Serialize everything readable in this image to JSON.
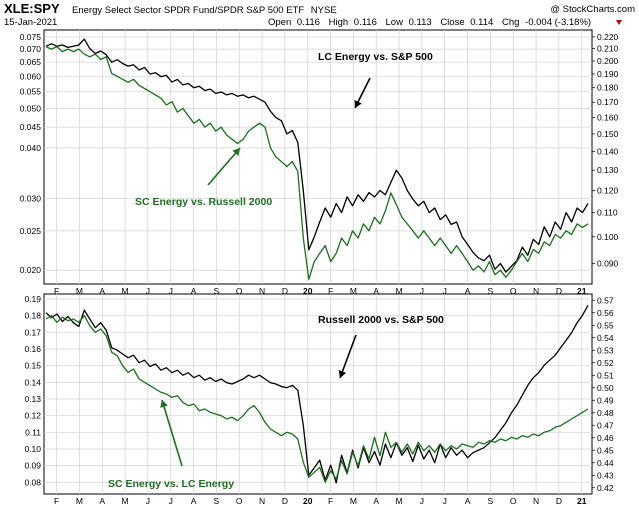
{
  "header": {
    "ticker": "XLE:SPY",
    "description": "Energy Select Sector SPDR Fund/SPDR S&P 500 ETF",
    "exchange": "NYSE",
    "date": "15-Jan-2021",
    "credit": "@ StockCharts.com",
    "open_label": "Open",
    "open_value": "0.116",
    "high_label": "High",
    "high_value": "0.116",
    "low_label": "Low",
    "low_value": "0.113",
    "close_label": "Close",
    "close_value": "0.114",
    "chg_label": "Chg",
    "chg_value": "-0.004 (-3.18%)",
    "chg_color": "#cc0000"
  },
  "colors": {
    "black_series": "#000000",
    "green_series": "#1f6e1f",
    "grid": "#d0d0d0"
  },
  "chart_data": [
    {
      "type": "line",
      "y_scale": "log",
      "x_ticks": [
        "F",
        "M",
        "A",
        "M",
        "J",
        "J",
        "A",
        "S",
        "O",
        "N",
        "D",
        "20",
        "F",
        "M",
        "A",
        "M",
        "J",
        "J",
        "A",
        "S",
        "O",
        "N",
        "D",
        "21"
      ],
      "left_axis": {
        "ticks": [
          0.075,
          0.07,
          0.065,
          0.06,
          0.055,
          0.05,
          0.045,
          0.04,
          0.03,
          0.025,
          0.02
        ],
        "range": [
          0.0185,
          0.078
        ]
      },
      "right_axis": {
        "ticks": [
          0.22,
          0.21,
          0.2,
          0.19,
          0.18,
          0.17,
          0.16,
          0.15,
          0.14,
          0.13,
          0.12,
          0.11,
          0.1,
          0.09
        ],
        "range": [
          0.083,
          0.226
        ]
      },
      "annotations": [
        {
          "text": "LC Energy vs. S&P 500"
        },
        {
          "text": "SC Energy vs. Russell 2000"
        }
      ],
      "series": [
        {
          "axis": "right",
          "color": "#000000",
          "values": [
            0.212,
            0.214,
            0.212,
            0.213,
            0.211,
            0.212,
            0.213,
            0.218,
            0.21,
            0.206,
            0.208,
            0.205,
            0.199,
            0.201,
            0.198,
            0.196,
            0.197,
            0.193,
            0.195,
            0.19,
            0.191,
            0.188,
            0.189,
            0.184,
            0.186,
            0.182,
            0.183,
            0.18,
            0.181,
            0.178,
            0.179,
            0.176,
            0.177,
            0.175,
            0.176,
            0.174,
            0.175,
            0.173,
            0.174,
            0.172,
            0.17,
            0.164,
            0.16,
            0.158,
            0.15,
            0.152,
            0.145,
            0.12,
            0.095,
            0.1,
            0.106,
            0.112,
            0.108,
            0.114,
            0.11,
            0.117,
            0.113,
            0.118,
            0.115,
            0.119,
            0.117,
            0.12,
            0.118,
            0.124,
            0.13,
            0.126,
            0.12,
            0.116,
            0.113,
            0.115,
            0.11,
            0.112,
            0.107,
            0.109,
            0.105,
            0.106,
            0.1,
            0.097,
            0.094,
            0.092,
            0.091,
            0.093,
            0.088,
            0.09,
            0.087,
            0.089,
            0.091,
            0.096,
            0.093,
            0.099,
            0.097,
            0.104,
            0.1,
            0.106,
            0.103,
            0.11,
            0.106,
            0.112,
            0.11,
            0.114
          ]
        },
        {
          "axis": "left",
          "color": "#1f6e1f",
          "values": [
            0.071,
            0.07,
            0.071,
            0.069,
            0.07,
            0.069,
            0.07,
            0.068,
            0.067,
            0.068,
            0.066,
            0.067,
            0.061,
            0.06,
            0.059,
            0.058,
            0.059,
            0.057,
            0.056,
            0.055,
            0.054,
            0.053,
            0.051,
            0.052,
            0.049,
            0.05,
            0.048,
            0.046,
            0.047,
            0.045,
            0.046,
            0.044,
            0.045,
            0.043,
            0.042,
            0.041,
            0.042,
            0.044,
            0.045,
            0.046,
            0.045,
            0.04,
            0.038,
            0.037,
            0.036,
            0.037,
            0.035,
            0.024,
            0.019,
            0.021,
            0.022,
            0.023,
            0.021,
            0.022,
            0.024,
            0.023,
            0.025,
            0.024,
            0.026,
            0.025,
            0.027,
            0.026,
            0.028,
            0.031,
            0.029,
            0.027,
            0.026,
            0.025,
            0.024,
            0.025,
            0.024,
            0.023,
            0.024,
            0.023,
            0.022,
            0.023,
            0.022,
            0.021,
            0.02,
            0.0205,
            0.0198,
            0.021,
            0.0195,
            0.02,
            0.0192,
            0.02,
            0.021,
            0.022,
            0.021,
            0.0225,
            0.022,
            0.0235,
            0.023,
            0.0245,
            0.024,
            0.025,
            0.0245,
            0.026,
            0.0255,
            0.026
          ]
        }
      ]
    },
    {
      "type": "line",
      "y_scale": "linear",
      "x_ticks": [
        "F",
        "M",
        "A",
        "M",
        "J",
        "J",
        "A",
        "S",
        "O",
        "N",
        "D",
        "20",
        "F",
        "M",
        "A",
        "M",
        "J",
        "J",
        "A",
        "S",
        "O",
        "N",
        "D",
        "21"
      ],
      "left_axis": {
        "ticks": [
          0.19,
          0.18,
          0.17,
          0.16,
          0.15,
          0.14,
          0.13,
          0.12,
          0.11,
          0.1,
          0.09,
          0.08
        ],
        "range": [
          0.073,
          0.193
        ]
      },
      "right_axis": {
        "ticks": [
          0.57,
          0.56,
          0.55,
          0.54,
          0.53,
          0.52,
          0.51,
          0.5,
          0.49,
          0.48,
          0.47,
          0.46,
          0.45,
          0.44,
          0.43,
          0.42
        ],
        "range": [
          0.415,
          0.575
        ]
      },
      "annotations": [
        {
          "text": "Russell 2000 vs. S&P 500"
        },
        {
          "text": "SC Energy vs. LC Energy"
        }
      ],
      "series": [
        {
          "axis": "right",
          "color": "#000000",
          "values": [
            0.56,
            0.556,
            0.559,
            0.553,
            0.557,
            0.552,
            0.549,
            0.562,
            0.555,
            0.548,
            0.552,
            0.546,
            0.532,
            0.53,
            0.527,
            0.524,
            0.526,
            0.52,
            0.522,
            0.517,
            0.519,
            0.514,
            0.516,
            0.512,
            0.514,
            0.51,
            0.512,
            0.508,
            0.51,
            0.506,
            0.508,
            0.505,
            0.507,
            0.504,
            0.503,
            0.505,
            0.507,
            0.51,
            0.508,
            0.51,
            0.507,
            0.504,
            0.503,
            0.501,
            0.5,
            0.502,
            0.498,
            0.47,
            0.43,
            0.436,
            0.442,
            0.426,
            0.438,
            0.424,
            0.446,
            0.432,
            0.45,
            0.436,
            0.452,
            0.44,
            0.449,
            0.438,
            0.455,
            0.444,
            0.456,
            0.446,
            0.452,
            0.441,
            0.454,
            0.443,
            0.45,
            0.44,
            0.455,
            0.444,
            0.452,
            0.446,
            0.45,
            0.444,
            0.448,
            0.45,
            0.452,
            0.456,
            0.46,
            0.466,
            0.472,
            0.48,
            0.486,
            0.494,
            0.502,
            0.508,
            0.512,
            0.518,
            0.522,
            0.526,
            0.532,
            0.538,
            0.544,
            0.552,
            0.558,
            0.566
          ]
        },
        {
          "axis": "left",
          "color": "#1f6e1f",
          "values": [
            0.178,
            0.18,
            0.176,
            0.179,
            0.177,
            0.178,
            0.176,
            0.18,
            0.174,
            0.17,
            0.172,
            0.168,
            0.158,
            0.156,
            0.15,
            0.146,
            0.148,
            0.142,
            0.14,
            0.138,
            0.136,
            0.134,
            0.133,
            0.131,
            0.132,
            0.128,
            0.126,
            0.127,
            0.123,
            0.124,
            0.122,
            0.121,
            0.12,
            0.118,
            0.119,
            0.117,
            0.12,
            0.124,
            0.126,
            0.122,
            0.116,
            0.112,
            0.11,
            0.108,
            0.11,
            0.109,
            0.106,
            0.092,
            0.083,
            0.086,
            0.089,
            0.08,
            0.087,
            0.082,
            0.093,
            0.085,
            0.098,
            0.09,
            0.102,
            0.094,
            0.107,
            0.096,
            0.11,
            0.101,
            0.104,
            0.098,
            0.103,
            0.097,
            0.104,
            0.099,
            0.102,
            0.098,
            0.103,
            0.099,
            0.102,
            0.1,
            0.103,
            0.102,
            0.101,
            0.104,
            0.103,
            0.105,
            0.104,
            0.106,
            0.105,
            0.107,
            0.106,
            0.108,
            0.107,
            0.109,
            0.108,
            0.11,
            0.111,
            0.113,
            0.114,
            0.116,
            0.118,
            0.12,
            0.122,
            0.124
          ]
        }
      ]
    }
  ]
}
